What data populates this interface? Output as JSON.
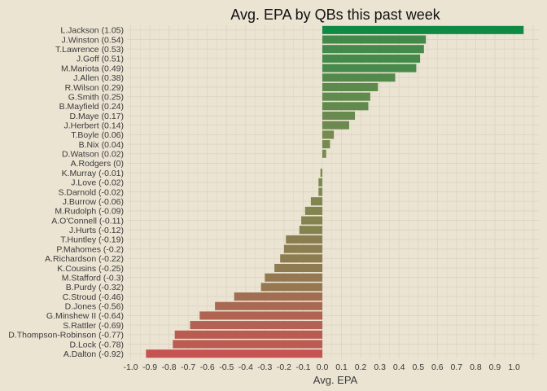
{
  "chart_data": {
    "type": "bar",
    "orientation": "horizontal",
    "title": "Avg. EPA by QBs this past week",
    "xlabel": "Avg. EPA",
    "ylabel": "",
    "xlim": [
      -1.0,
      1.0
    ],
    "xticks": [
      "-1.0",
      "-0.9",
      "-0.8",
      "-0.7",
      "-0.6",
      "-0.5",
      "-0.4",
      "-0.3",
      "-0.2",
      "-0.1",
      "0.0",
      "0.1",
      "0.2",
      "0.3",
      "0.4",
      "0.5",
      "0.6",
      "0.7",
      "0.8",
      "0.9",
      "1.0"
    ],
    "grid": true,
    "color_low": "#c75252",
    "color_mid": "#7a8a50",
    "color_high": "#0f8a45",
    "categories": [
      "L.Jackson (1.05)",
      "J.Winston (0.54)",
      "T.Lawrence (0.53)",
      "J.Goff (0.51)",
      "M.Mariota (0.49)",
      "J.Allen (0.38)",
      "R.Wilson (0.29)",
      "G.Smith (0.25)",
      "B.Mayfield (0.24)",
      "D.Maye (0.17)",
      "J.Herbert (0.14)",
      "T.Boyle (0.06)",
      "B.Nix (0.04)",
      "D.Watson (0.02)",
      "A.Rodgers (0)",
      "K.Murray (-0.01)",
      "J.Love (-0.02)",
      "S.Darnold (-0.02)",
      "J.Burrow (-0.06)",
      "M.Rudolph (-0.09)",
      "A.O'Connell (-0.11)",
      "J.Hurts (-0.12)",
      "T.Huntley (-0.19)",
      "P.Mahomes (-0.2)",
      "A.Richardson (-0.22)",
      "K.Cousins (-0.25)",
      "M.Stafford (-0.3)",
      "B.Purdy (-0.32)",
      "C.Stroud (-0.46)",
      "D.Jones (-0.56)",
      "G.Minshew II (-0.64)",
      "S.Rattler (-0.69)",
      "D.Thompson-Robinson (-0.77)",
      "D.Lock (-0.78)",
      "A.Dalton (-0.92)"
    ],
    "values": [
      1.05,
      0.54,
      0.53,
      0.51,
      0.49,
      0.38,
      0.29,
      0.25,
      0.24,
      0.17,
      0.14,
      0.06,
      0.04,
      0.02,
      0,
      -0.01,
      -0.02,
      -0.02,
      -0.06,
      -0.09,
      -0.11,
      -0.12,
      -0.19,
      -0.2,
      -0.22,
      -0.25,
      -0.3,
      -0.32,
      -0.46,
      -0.56,
      -0.64,
      -0.69,
      -0.77,
      -0.78,
      -0.92
    ]
  }
}
